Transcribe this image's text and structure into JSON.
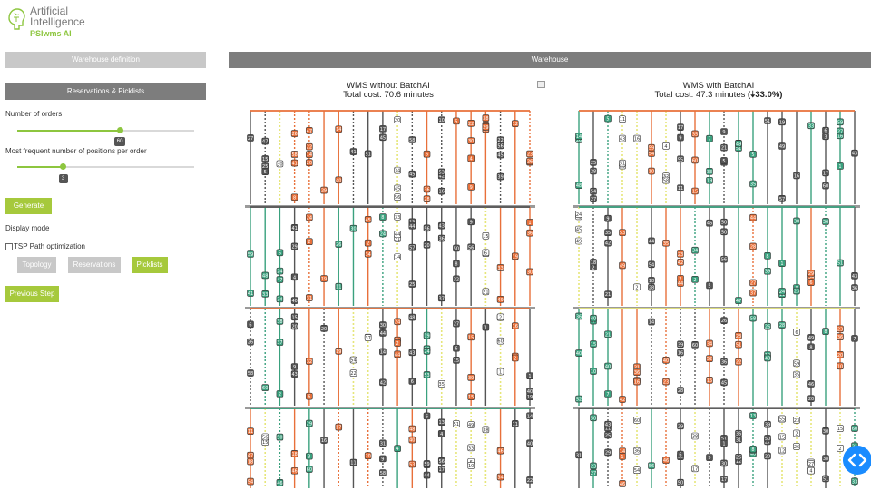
{
  "logo": {
    "line1": "Artificial",
    "line2": "Intelligence",
    "sub": "PSIwms AI"
  },
  "sidebar": {
    "warehouse_definition": "Warehouse definition",
    "reservations_picklists": "Reservations & Picklists",
    "orders_label": "Number of orders",
    "orders_value": "60",
    "orders_fraction": 0.58,
    "positions_label": "Most frequent number of positions per order",
    "positions_value": "3",
    "positions_fraction": 0.26,
    "generate": "Generate",
    "display_mode": "Display mode",
    "tsp_label": "TSP Path optimization",
    "tsp_checked": false,
    "modes": [
      "Topology",
      "Reservations",
      "Picklists"
    ],
    "active_mode": "Picklists",
    "previous_step": "Previous Step"
  },
  "main": {
    "header": "Warehouse"
  },
  "panels": [
    {
      "title": "WMS without BatchAI",
      "cost_prefix": "Total cost: ",
      "cost": "70.6",
      "cost_suffix": " minutes",
      "improvement": ""
    },
    {
      "title": "WMS with BatchAI",
      "cost_prefix": "Total cost: ",
      "cost": "47.3",
      "cost_suffix": " minutes",
      "improvement": "(🠣33.0%)"
    }
  ],
  "colors": {
    "accent": "#a6c93c",
    "orange": "#e8703a",
    "teal": "#3aa17e",
    "grey": "#555555",
    "yellow": "#e6e67a",
    "header_grey": "#7d7d7d"
  },
  "icons": {
    "expand": "expand-icon",
    "code": "code-icon",
    "logo": "brain-logo-icon"
  }
}
